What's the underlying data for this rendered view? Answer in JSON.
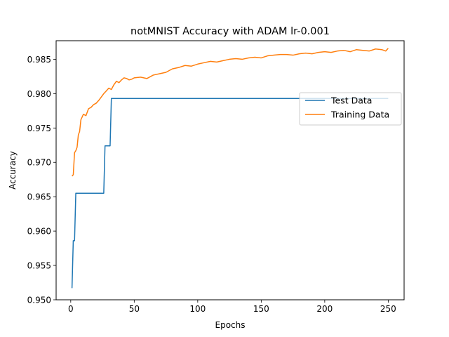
{
  "chart_data": {
    "type": "line",
    "title": "notMNIST Accuracy with ADAM lr-0.001",
    "xlabel": "Epochs",
    "ylabel": "Accuracy",
    "xlim": [
      -11.5,
      262.5
    ],
    "ylim": [
      0.95,
      0.9877
    ],
    "xticks": [
      0,
      50,
      100,
      150,
      200,
      250
    ],
    "yticks": [
      0.95,
      0.955,
      0.96,
      0.965,
      0.97,
      0.975,
      0.98,
      0.985
    ],
    "xtick_labels": [
      "0",
      "50",
      "100",
      "150",
      "200",
      "250"
    ],
    "ytick_labels": [
      "0.950",
      "0.955",
      "0.960",
      "0.965",
      "0.970",
      "0.975",
      "0.980",
      "0.985"
    ],
    "grid": false,
    "legend_position": "center-right",
    "series": [
      {
        "name": "Test Data",
        "color": "#1f77b4",
        "x": [
          1,
          2,
          3,
          4,
          26,
          27,
          31,
          32,
          250
        ],
        "y": [
          0.9517,
          0.9586,
          0.9586,
          0.9655,
          0.9655,
          0.9724,
          0.9724,
          0.9793,
          0.9793
        ]
      },
      {
        "name": "Training Data",
        "color": "#ff7f0e",
        "x": [
          1,
          2,
          3,
          4,
          5,
          6,
          7,
          8,
          10,
          12,
          14,
          16,
          18,
          20,
          22,
          24,
          26,
          28,
          30,
          32,
          34,
          36,
          38,
          40,
          42,
          44,
          46,
          48,
          50,
          55,
          60,
          65,
          70,
          75,
          80,
          85,
          90,
          95,
          100,
          105,
          110,
          115,
          120,
          125,
          130,
          135,
          140,
          145,
          150,
          155,
          160,
          165,
          170,
          175,
          180,
          185,
          190,
          195,
          200,
          205,
          210,
          215,
          220,
          225,
          230,
          235,
          240,
          245,
          248,
          250
        ],
        "y": [
          0.968,
          0.9682,
          0.9714,
          0.9717,
          0.9722,
          0.974,
          0.9745,
          0.9762,
          0.977,
          0.9768,
          0.9778,
          0.978,
          0.9784,
          0.9786,
          0.979,
          0.9795,
          0.98,
          0.9804,
          0.9808,
          0.9806,
          0.9813,
          0.9818,
          0.9816,
          0.982,
          0.9823,
          0.9822,
          0.982,
          0.9821,
          0.9823,
          0.9824,
          0.9822,
          0.9827,
          0.9829,
          0.9831,
          0.9836,
          0.9838,
          0.9841,
          0.984,
          0.9843,
          0.9845,
          0.9847,
          0.9846,
          0.9848,
          0.985,
          0.9851,
          0.985,
          0.9852,
          0.9853,
          0.9852,
          0.9855,
          0.9856,
          0.9857,
          0.9857,
          0.9856,
          0.9858,
          0.9859,
          0.9858,
          0.986,
          0.9861,
          0.986,
          0.9862,
          0.9863,
          0.9861,
          0.9864,
          0.9863,
          0.9862,
          0.9865,
          0.9864,
          0.9862,
          0.9866
        ]
      }
    ]
  }
}
